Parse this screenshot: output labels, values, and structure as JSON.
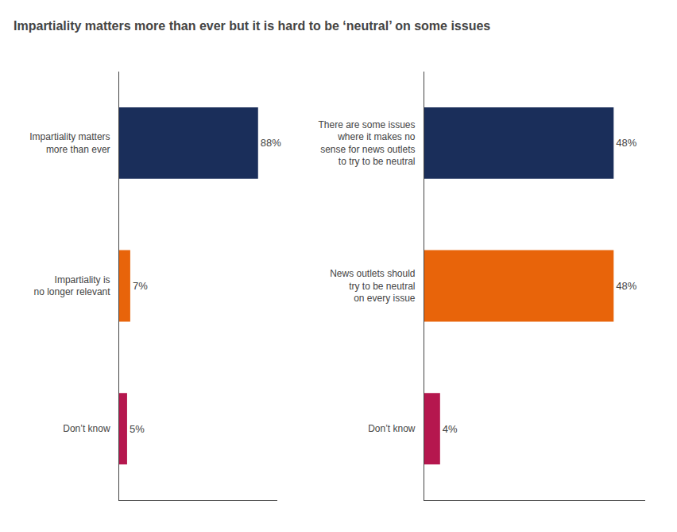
{
  "chart_data": [
    {
      "type": "bar",
      "title": "Impartiality matters more than ever but it is hard to be ‘neutral’ on some issues",
      "orientation": "horizontal",
      "categories": [
        "Impartiality matters\nmore than ever",
        "Impartiality is\nno longer relevant",
        "Don’t know"
      ],
      "values": [
        88,
        7,
        5
      ],
      "value_labels": [
        "88%",
        "7%",
        "5%"
      ],
      "colors": [
        "#1a2e5a",
        "#e8640a",
        "#b5174e"
      ],
      "xlim": [
        0,
        100
      ],
      "data_labels": true,
      "tick_labels": "y",
      "grid": false
    },
    {
      "type": "bar",
      "orientation": "horizontal",
      "categories": [
        "There are some issues\nwhere it makes no\nsense for news outlets\nto try to be neutral",
        "News outlets should\ntry to be neutral\non every issue",
        "Don’t know"
      ],
      "values": [
        48,
        48,
        4
      ],
      "value_labels": [
        "48%",
        "48%",
        "4%"
      ],
      "colors": [
        "#1a2e5a",
        "#e8640a",
        "#b5174e"
      ],
      "xlim": [
        0,
        56
      ],
      "data_labels": true,
      "tick_labels": "y",
      "grid": false
    }
  ]
}
